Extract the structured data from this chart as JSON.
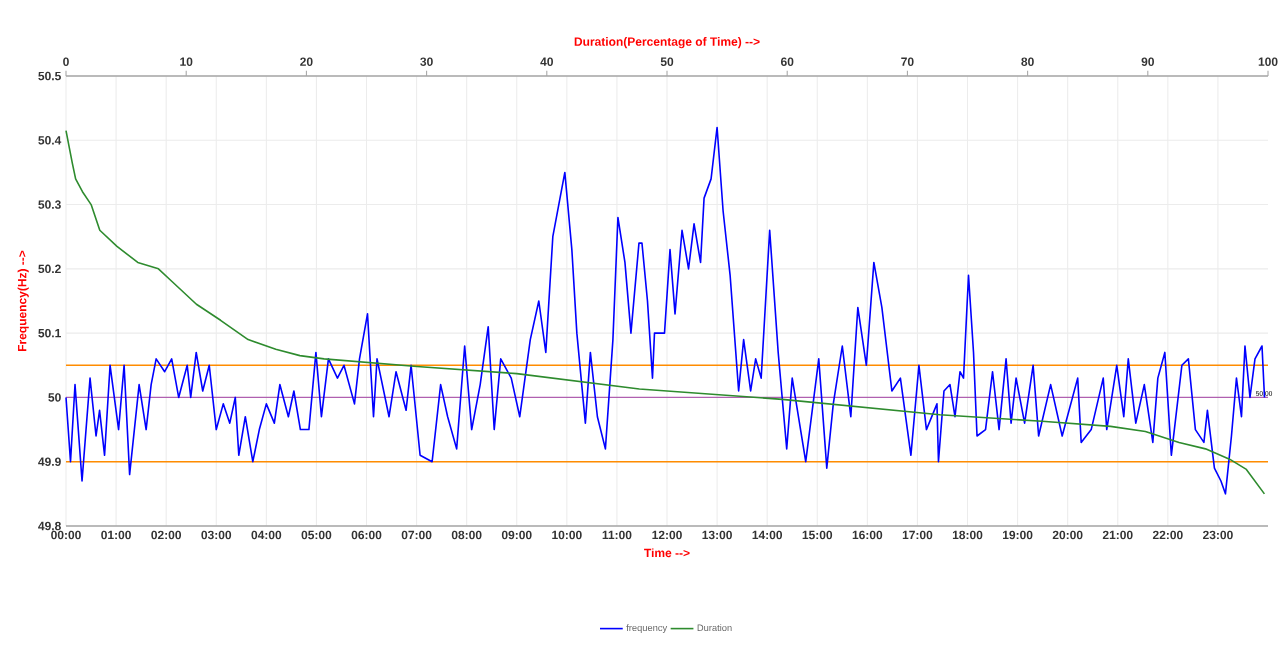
{
  "chart_data": {
    "type": "line",
    "xlabel": "Time -->",
    "ylabel": "Frequency(Hz) -->",
    "x2label": "Duration(Percentage of Time) -->",
    "xlim": [
      0,
      24
    ],
    "ylim": [
      49.8,
      50.5
    ],
    "x2lim": [
      0,
      100
    ],
    "xticks": [
      {
        "value": 0,
        "label": "00:00"
      },
      {
        "value": 1,
        "label": "01:00"
      },
      {
        "value": 2,
        "label": "02:00"
      },
      {
        "value": 3,
        "label": "03:00"
      },
      {
        "value": 4,
        "label": "04:00"
      },
      {
        "value": 5,
        "label": "05:00"
      },
      {
        "value": 6,
        "label": "06:00"
      },
      {
        "value": 7,
        "label": "07:00"
      },
      {
        "value": 8,
        "label": "08:00"
      },
      {
        "value": 9,
        "label": "09:00"
      },
      {
        "value": 10,
        "label": "10:00"
      },
      {
        "value": 11,
        "label": "11:00"
      },
      {
        "value": 12,
        "label": "12:00"
      },
      {
        "value": 13,
        "label": "13:00"
      },
      {
        "value": 14,
        "label": "14:00"
      },
      {
        "value": 15,
        "label": "15:00"
      },
      {
        "value": 16,
        "label": "16:00"
      },
      {
        "value": 17,
        "label": "17:00"
      },
      {
        "value": 18,
        "label": "18:00"
      },
      {
        "value": 19,
        "label": "19:00"
      },
      {
        "value": 20,
        "label": "20:00"
      },
      {
        "value": 21,
        "label": "21:00"
      },
      {
        "value": 22,
        "label": "22:00"
      },
      {
        "value": 23,
        "label": "23:00"
      }
    ],
    "x2ticks": [
      0,
      10,
      20,
      30,
      40,
      50,
      60,
      70,
      80,
      90,
      100
    ],
    "yticks": [
      49.8,
      49.9,
      50,
      50.1,
      50.2,
      50.3,
      50.4,
      50.5
    ],
    "grid": true,
    "legend": "bottom",
    "ref_lines": [
      {
        "axis": "y",
        "value": 49.9,
        "color": "#ff8c00"
      },
      {
        "axis": "y",
        "value": 50.05,
        "color": "#ff8c00"
      },
      {
        "axis": "y",
        "value": 50,
        "color": "#b060b0",
        "label": "50.00"
      }
    ],
    "series": [
      {
        "name": "frequency",
        "color": "#0000ff",
        "x": [
          0,
          0.09,
          0.18,
          0.32,
          0.48,
          0.6,
          0.67,
          0.77,
          0.88,
          1.05,
          1.16,
          1.27,
          1.46,
          1.6,
          1.7,
          1.8,
          1.97,
          2.11,
          2.25,
          2.42,
          2.49,
          2.6,
          2.73,
          2.86,
          3.0,
          3.14,
          3.27,
          3.38,
          3.45,
          3.58,
          3.73,
          3.86,
          4.0,
          4.16,
          4.27,
          4.44,
          4.55,
          4.68,
          4.85,
          4.99,
          5.1,
          5.24,
          5.42,
          5.55,
          5.76,
          5.86,
          6.02,
          6.14,
          6.21,
          6.45,
          6.59,
          6.79,
          6.89,
          7.07,
          7.31,
          7.48,
          7.62,
          7.8,
          7.96,
          8.1,
          8.27,
          8.43,
          8.55,
          8.68,
          8.89,
          9.06,
          9.27,
          9.44,
          9.58,
          9.72,
          9.96,
          10.1,
          10.2,
          10.37,
          10.47,
          10.61,
          10.77,
          10.92,
          11.02,
          11.16,
          11.28,
          11.44,
          11.5,
          11.61,
          11.71,
          11.75,
          11.95,
          12.06,
          12.16,
          12.3,
          12.43,
          12.54,
          12.67,
          12.74,
          12.88,
          13.0,
          13.12,
          13.26,
          13.43,
          13.53,
          13.67,
          13.77,
          13.88,
          14.05,
          14.22,
          14.39,
          14.5,
          14.77,
          15.03,
          15.19,
          15.32,
          15.5,
          15.67,
          15.81,
          15.98,
          16.13,
          16.29,
          16.49,
          16.66,
          16.87,
          17.03,
          17.18,
          17.39,
          17.42,
          17.53,
          17.65,
          17.75,
          17.85,
          17.92,
          18.02,
          18.12,
          18.19,
          18.36,
          18.5,
          18.63,
          18.77,
          18.87,
          18.97,
          19.14,
          19.31,
          19.42,
          19.66,
          19.89,
          20.2,
          20.27,
          20.47,
          20.71,
          20.78,
          20.98,
          21.12,
          21.21,
          21.36,
          21.53,
          21.7,
          21.8,
          21.94,
          22.07,
          22.28,
          22.41,
          22.55,
          22.72,
          22.79,
          22.93,
          23.06,
          23.15,
          23.27,
          23.37,
          23.47,
          23.54,
          23.64,
          23.74,
          23.88,
          23.93
        ],
        "values": [
          50.0,
          49.9,
          50.02,
          49.87,
          50.03,
          49.94,
          49.98,
          49.91,
          50.05,
          49.95,
          50.05,
          49.88,
          50.02,
          49.95,
          50.02,
          50.06,
          50.04,
          50.06,
          50.0,
          50.05,
          50.0,
          50.07,
          50.01,
          50.05,
          49.95,
          49.99,
          49.96,
          50.0,
          49.91,
          49.97,
          49.9,
          49.95,
          49.99,
          49.96,
          50.02,
          49.97,
          50.01,
          49.95,
          49.95,
          50.07,
          49.97,
          50.06,
          50.03,
          50.05,
          49.99,
          50.06,
          50.13,
          49.97,
          50.06,
          49.97,
          50.04,
          49.98,
          50.05,
          49.91,
          49.9,
          50.02,
          49.97,
          49.92,
          50.08,
          49.95,
          50.02,
          50.11,
          49.95,
          50.06,
          50.03,
          49.97,
          50.09,
          50.15,
          50.07,
          50.25,
          50.35,
          50.23,
          50.1,
          49.96,
          50.07,
          49.97,
          49.92,
          50.09,
          50.28,
          50.21,
          50.1,
          50.24,
          50.24,
          50.15,
          50.03,
          50.1,
          50.1,
          50.23,
          50.13,
          50.26,
          50.2,
          50.27,
          50.21,
          50.31,
          50.34,
          50.42,
          50.29,
          50.19,
          50.01,
          50.09,
          50.01,
          50.06,
          50.03,
          50.26,
          50.07,
          49.92,
          50.03,
          49.9,
          50.06,
          49.89,
          49.99,
          50.08,
          49.97,
          50.14,
          50.05,
          50.21,
          50.14,
          50.01,
          50.03,
          49.91,
          50.05,
          49.95,
          49.99,
          49.9,
          50.01,
          50.02,
          49.97,
          50.04,
          50.03,
          50.19,
          50.07,
          49.94,
          49.95,
          50.04,
          49.95,
          50.06,
          49.96,
          50.03,
          49.96,
          50.05,
          49.94,
          50.02,
          49.94,
          50.03,
          49.93,
          49.95,
          50.03,
          49.95,
          50.05,
          49.97,
          50.06,
          49.96,
          50.02,
          49.93,
          50.03,
          50.07,
          49.91,
          50.05,
          50.06,
          49.95,
          49.93,
          49.98,
          49.89,
          49.87,
          49.85,
          49.94,
          50.03,
          49.97,
          50.08,
          50.0,
          50.06,
          50.08,
          50.0
        ]
      },
      {
        "name": "Duration",
        "color": "#2e8b2e",
        "axis": "x2",
        "x": [
          0,
          0.52,
          0.8,
          1.37,
          2.09,
          2.81,
          4.24,
          5.97,
          7.69,
          8.84,
          10.85,
          12.86,
          15.15,
          17.45,
          19.46,
          21.47,
          29.2,
          37.5,
          47.7,
          59.6,
          72.7,
          81.2,
          86.9,
          89.8,
          92.6,
          94.8,
          96.8,
          98.2,
          99.7
        ],
        "values": [
          50.415,
          50.365,
          50.34,
          50.32,
          50.3,
          50.26,
          50.235,
          50.21,
          50.2,
          50.18,
          50.145,
          50.12,
          50.09,
          50.075,
          50.065,
          50.06,
          50.048,
          50.037,
          50.013,
          49.997,
          49.973,
          49.963,
          49.955,
          49.947,
          49.93,
          49.92,
          49.904,
          49.888,
          49.85
        ]
      }
    ]
  }
}
